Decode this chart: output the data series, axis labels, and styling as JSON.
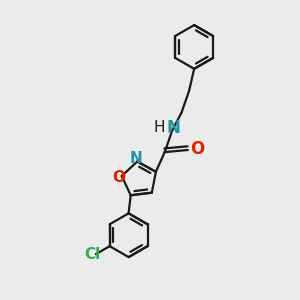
{
  "bg_color": "#ebebeb",
  "bond_color": "#1a1a1a",
  "bond_width": 1.6,
  "dbo": 0.055,
  "N_color": "#2196a0",
  "O_color": "#e02000",
  "Cl_color": "#3aaa50",
  "font_size": 11,
  "xlim": [
    -3.0,
    3.0
  ],
  "ylim": [
    -3.5,
    3.5
  ]
}
